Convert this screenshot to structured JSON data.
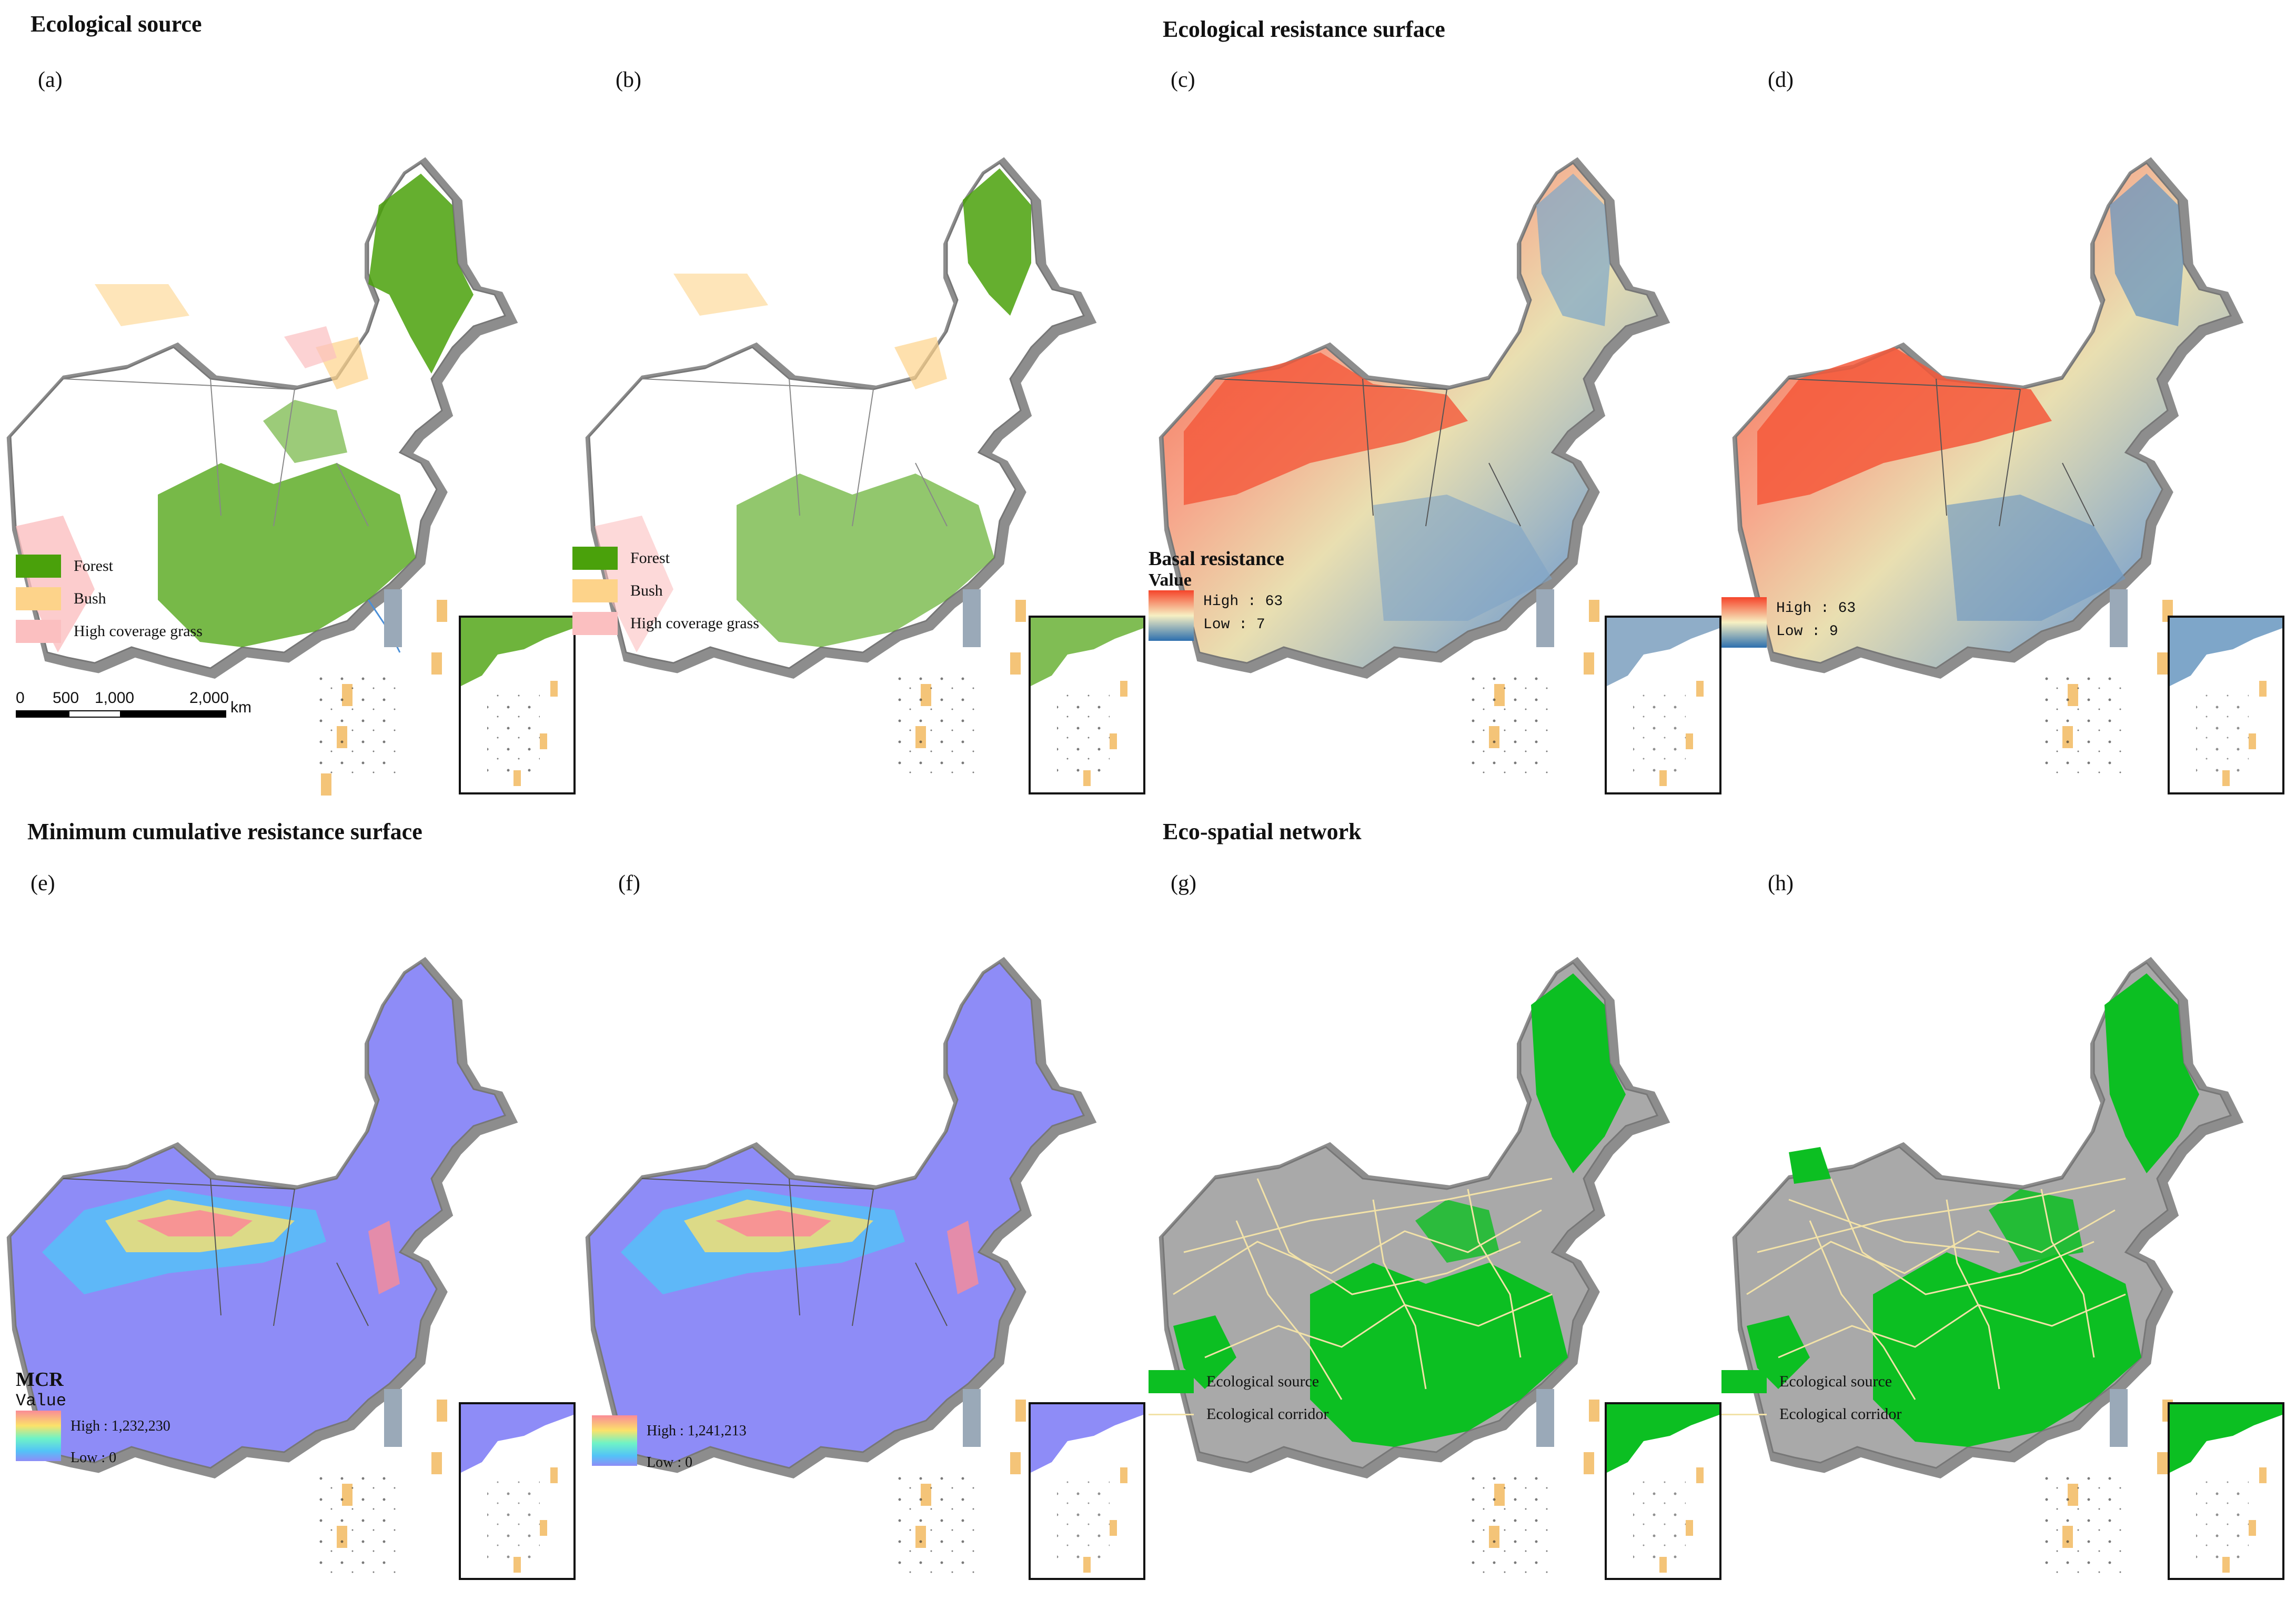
{
  "sections": {
    "ecological_source": "Ecological source",
    "resistance_surface": "Ecological resistance surface",
    "mcr_surface": "Minimum cumulative resistance surface",
    "eco_network": "Eco-spatial network"
  },
  "panels": {
    "a": {
      "label": "(a)"
    },
    "b": {
      "label": "(b)"
    },
    "c": {
      "label": "(c)"
    },
    "d": {
      "label": "(d)"
    },
    "e": {
      "label": "(e)"
    },
    "f": {
      "label": "(f)"
    },
    "g": {
      "label": "(g)"
    },
    "h": {
      "label": "(h)"
    }
  },
  "legend_landcover": {
    "forest": "Forest",
    "bush": "Bush",
    "grass": "High coverage grass",
    "forest_color": "#4aa10b",
    "bush_color": "#fdd38a",
    "grass_color": "#fbbfc0"
  },
  "legend_basal": {
    "title": "Basal resistance",
    "subtitle": "Value",
    "c_high": "High : 63",
    "c_low": "Low : 7",
    "d_high": "High : 63",
    "d_low": "Low : 9"
  },
  "legend_mcr": {
    "title": "MCR",
    "subtitle": "Value",
    "e_high": "High : 1,232,230",
    "e_low": "Low : 0",
    "f_high": "High : 1,241,213",
    "f_low": "Low : 0"
  },
  "legend_network": {
    "source": "Ecological source",
    "corridor": "Ecological corridor",
    "source_color": "#0cbf22",
    "corridor_color": "#f2e2a8"
  },
  "scalebar": {
    "t0": "0",
    "t1": "500",
    "t2": "1,000",
    "t3": "2,000",
    "unit": "km"
  }
}
